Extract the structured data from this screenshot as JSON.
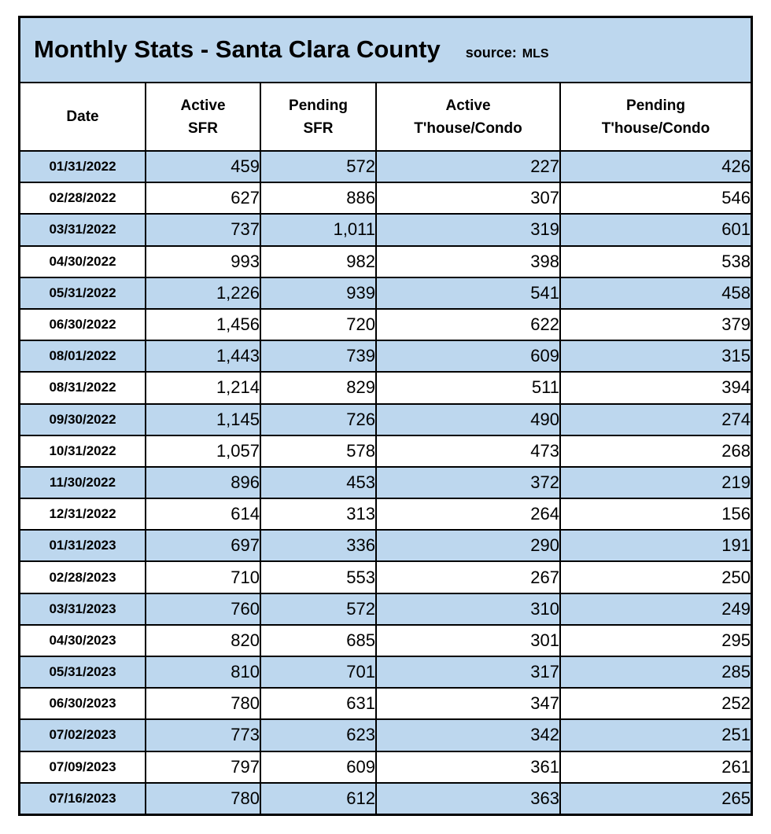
{
  "title_bar": {
    "title": "Monthly Stats - Santa Clara County",
    "source_label": "source:",
    "source_value": "MLS"
  },
  "colors": {
    "band_blue": "#bdd7ee",
    "band_white": "#ffffff",
    "border": "#000000",
    "text": "#000000"
  },
  "table": {
    "columns": [
      {
        "lines": [
          "Date"
        ]
      },
      {
        "lines": [
          "Active",
          "SFR"
        ]
      },
      {
        "lines": [
          "Pending",
          "SFR"
        ]
      },
      {
        "lines": [
          "Active",
          "T'house/Condo"
        ]
      },
      {
        "lines": [
          "Pending",
          "T'house/Condo"
        ]
      }
    ],
    "rows": [
      {
        "date": "01/31/2022",
        "active_sfr": "459",
        "pending_sfr": "572",
        "active_condo": "227",
        "pending_condo": "426"
      },
      {
        "date": "02/28/2022",
        "active_sfr": "627",
        "pending_sfr": "886",
        "active_condo": "307",
        "pending_condo": "546"
      },
      {
        "date": "03/31/2022",
        "active_sfr": "737",
        "pending_sfr": "1,011",
        "active_condo": "319",
        "pending_condo": "601"
      },
      {
        "date": "04/30/2022",
        "active_sfr": "993",
        "pending_sfr": "982",
        "active_condo": "398",
        "pending_condo": "538"
      },
      {
        "date": "05/31/2022",
        "active_sfr": "1,226",
        "pending_sfr": "939",
        "active_condo": "541",
        "pending_condo": "458"
      },
      {
        "date": "06/30/2022",
        "active_sfr": "1,456",
        "pending_sfr": "720",
        "active_condo": "622",
        "pending_condo": "379"
      },
      {
        "date": "08/01/2022",
        "active_sfr": "1,443",
        "pending_sfr": "739",
        "active_condo": "609",
        "pending_condo": "315"
      },
      {
        "date": "08/31/2022",
        "active_sfr": "1,214",
        "pending_sfr": "829",
        "active_condo": "511",
        "pending_condo": "394"
      },
      {
        "date": "09/30/2022",
        "active_sfr": "1,145",
        "pending_sfr": "726",
        "active_condo": "490",
        "pending_condo": "274"
      },
      {
        "date": "10/31/2022",
        "active_sfr": "1,057",
        "pending_sfr": "578",
        "active_condo": "473",
        "pending_condo": "268"
      },
      {
        "date": "11/30/2022",
        "active_sfr": "896",
        "pending_sfr": "453",
        "active_condo": "372",
        "pending_condo": "219"
      },
      {
        "date": "12/31/2022",
        "active_sfr": "614",
        "pending_sfr": "313",
        "active_condo": "264",
        "pending_condo": "156"
      },
      {
        "date": "01/31/2023",
        "active_sfr": "697",
        "pending_sfr": "336",
        "active_condo": "290",
        "pending_condo": "191"
      },
      {
        "date": "02/28/2023",
        "active_sfr": "710",
        "pending_sfr": "553",
        "active_condo": "267",
        "pending_condo": "250"
      },
      {
        "date": "03/31/2023",
        "active_sfr": "760",
        "pending_sfr": "572",
        "active_condo": "310",
        "pending_condo": "249"
      },
      {
        "date": "04/30/2023",
        "active_sfr": "820",
        "pending_sfr": "685",
        "active_condo": "301",
        "pending_condo": "295"
      },
      {
        "date": "05/31/2023",
        "active_sfr": "810",
        "pending_sfr": "701",
        "active_condo": "317",
        "pending_condo": "285"
      },
      {
        "date": "06/30/2023",
        "active_sfr": "780",
        "pending_sfr": "631",
        "active_condo": "347",
        "pending_condo": "252"
      },
      {
        "date": "07/02/2023",
        "active_sfr": "773",
        "pending_sfr": "623",
        "active_condo": "342",
        "pending_condo": "251"
      },
      {
        "date": "07/09/2023",
        "active_sfr": "797",
        "pending_sfr": "609",
        "active_condo": "361",
        "pending_condo": "261"
      },
      {
        "date": "07/16/2023",
        "active_sfr": "780",
        "pending_sfr": "612",
        "active_condo": "363",
        "pending_condo": "265"
      }
    ]
  },
  "chart_data": {
    "type": "table",
    "title": "Monthly Stats - Santa Clara County",
    "source": "MLS",
    "columns": [
      "Date",
      "Active SFR",
      "Pending SFR",
      "Active T'house/Condo",
      "Pending T'house/Condo"
    ],
    "rows": [
      [
        "01/31/2022",
        459,
        572,
        227,
        426
      ],
      [
        "02/28/2022",
        627,
        886,
        307,
        546
      ],
      [
        "03/31/2022",
        737,
        1011,
        319,
        601
      ],
      [
        "04/30/2022",
        993,
        982,
        398,
        538
      ],
      [
        "05/31/2022",
        1226,
        939,
        541,
        458
      ],
      [
        "06/30/2022",
        1456,
        720,
        622,
        379
      ],
      [
        "08/01/2022",
        1443,
        739,
        609,
        315
      ],
      [
        "08/31/2022",
        1214,
        829,
        511,
        394
      ],
      [
        "09/30/2022",
        1145,
        726,
        490,
        274
      ],
      [
        "10/31/2022",
        1057,
        578,
        473,
        268
      ],
      [
        "11/30/2022",
        896,
        453,
        372,
        219
      ],
      [
        "12/31/2022",
        614,
        313,
        264,
        156
      ],
      [
        "01/31/2023",
        697,
        336,
        290,
        191
      ],
      [
        "02/28/2023",
        710,
        553,
        267,
        250
      ],
      [
        "03/31/2023",
        760,
        572,
        310,
        249
      ],
      [
        "04/30/2023",
        820,
        685,
        301,
        295
      ],
      [
        "05/31/2023",
        810,
        701,
        317,
        285
      ],
      [
        "06/30/2023",
        780,
        631,
        347,
        252
      ],
      [
        "07/02/2023",
        773,
        623,
        342,
        251
      ],
      [
        "07/09/2023",
        797,
        609,
        361,
        261
      ],
      [
        "07/16/2023",
        780,
        612,
        363,
        265
      ]
    ]
  }
}
